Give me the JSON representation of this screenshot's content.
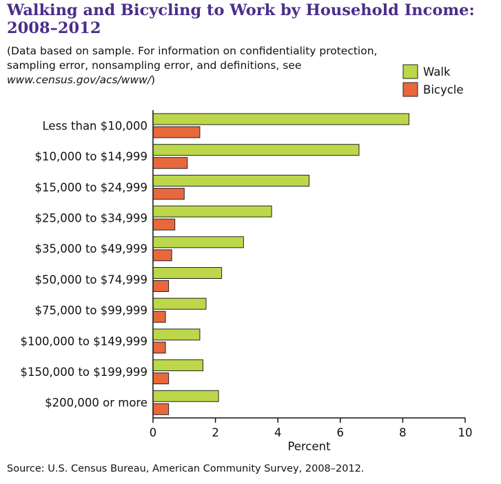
{
  "header": {
    "title": "Walking and Bicycling to Work by Household Income: 2008–2012",
    "subtitle_lead": "(Data based on sample. For information on confidentiality protection, sampling error, nonsampling error, and definitions, see ",
    "subtitle_url": "www.census.gov/acs/www/",
    "subtitle_tail": ")"
  },
  "source": "Source: U.S. Census Bureau, American Community Survey, 2008–2012.",
  "colors": {
    "walk": "#bcd84a",
    "bicycle": "#e8683c",
    "title": "#4b2d8a"
  },
  "chart_data": {
    "type": "bar",
    "orientation": "horizontal",
    "title": "Walking and Bicycling to Work by Household Income: 2008–2012",
    "xlabel": "Percent",
    "ylabel": "",
    "xlim": [
      0,
      10
    ],
    "xticks": [
      "0",
      "2",
      "4",
      "6",
      "8",
      "10"
    ],
    "legend_position": "top-right",
    "grid": false,
    "categories": [
      "Less than $10,000",
      "$10,000 to $14,999",
      "$15,000 to $24,999",
      "$25,000 to $34,999",
      "$35,000 to $49,999",
      "$50,000 to $74,999",
      "$75,000 to $99,999",
      "$100,000 to $149,999",
      "$150,000 to $199,999",
      "$200,000 or more"
    ],
    "series": [
      {
        "name": "Walk",
        "values": [
          8.2,
          6.6,
          5.0,
          3.8,
          2.9,
          2.2,
          1.7,
          1.5,
          1.6,
          2.1
        ]
      },
      {
        "name": "Bicycle",
        "values": [
          1.5,
          1.1,
          1.0,
          0.7,
          0.6,
          0.5,
          0.4,
          0.4,
          0.5,
          0.5
        ]
      }
    ]
  }
}
